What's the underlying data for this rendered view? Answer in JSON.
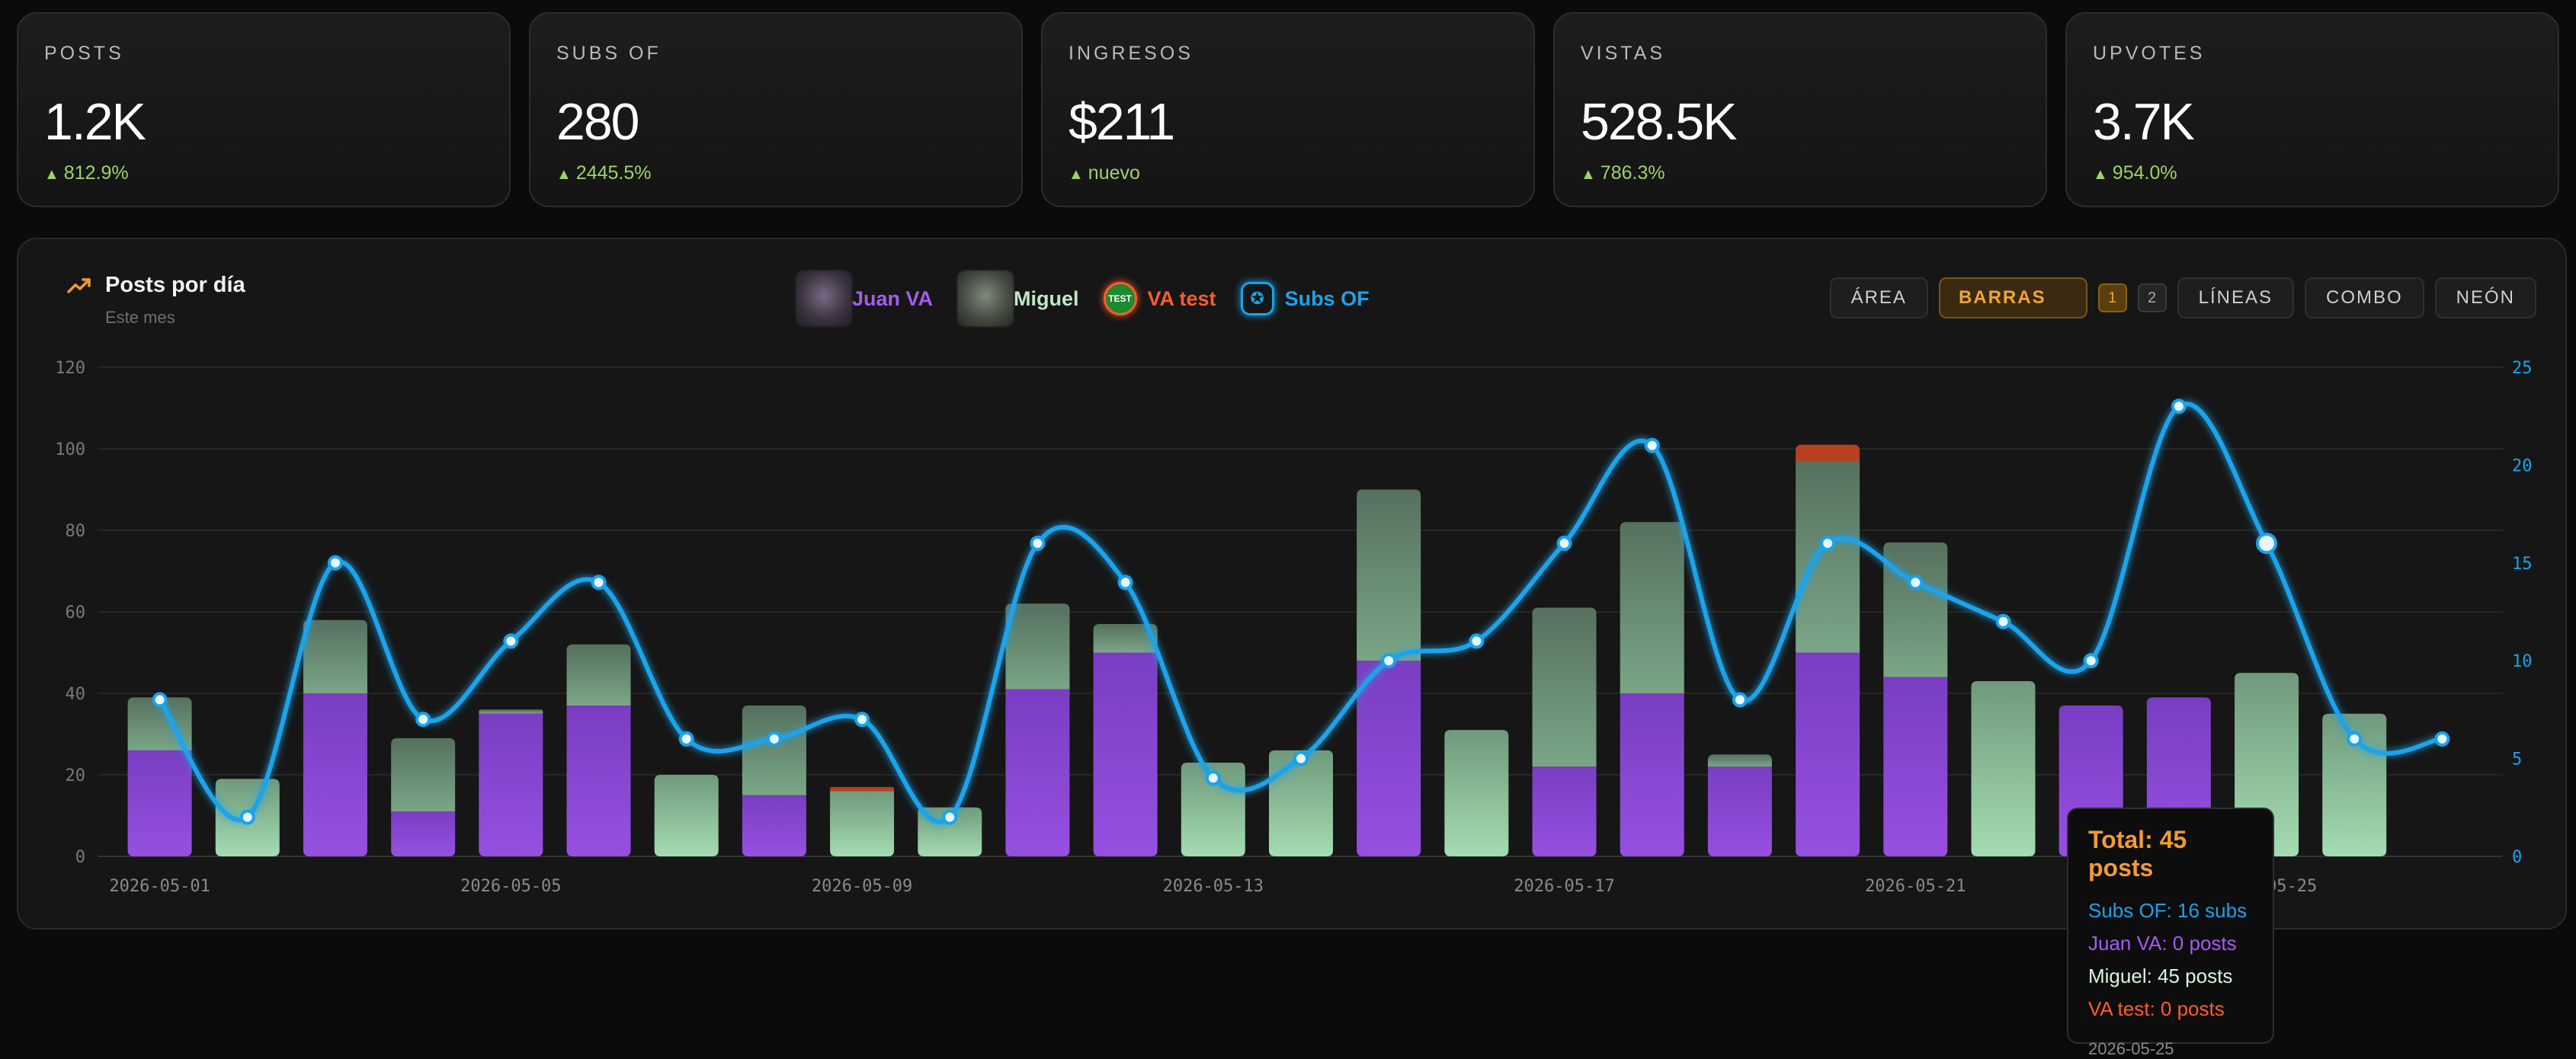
{
  "stats": [
    {
      "label": "POSTS",
      "value": "1.2K",
      "delta": "812.9%"
    },
    {
      "label": "SUBS OF",
      "value": "280",
      "delta": "2445.5%"
    },
    {
      "label": "INGRESOS",
      "value": "$211",
      "delta": "nuevo"
    },
    {
      "label": "VISTAS",
      "value": "528.5K",
      "delta": "786.3%"
    },
    {
      "label": "UPVOTES",
      "value": "3.7K",
      "delta": "954.0%"
    }
  ],
  "panel": {
    "title": "Posts por día",
    "subtitle": "Este mes",
    "icon": "trending-up-icon",
    "legend": [
      {
        "label": "Juan VA",
        "color": "#a35cf0",
        "icon": "avatar-juan"
      },
      {
        "label": "Miguel",
        "color": "#bfe8c6",
        "icon": "avatar-miguel"
      },
      {
        "label": "VA test",
        "color": "#ff5b2e",
        "icon": "test-badge-icon",
        "badge": "TEST"
      },
      {
        "label": "Subs OF",
        "color": "#1aa3ea",
        "icon": "onlyfans-icon"
      }
    ],
    "buttons": {
      "area": "ÁREA",
      "bars": "BARRAS",
      "page1": "1",
      "page2": "2",
      "lines": "LÍNEAS",
      "combo": "COMBO",
      "neon": "NEÓN"
    },
    "tooltip": {
      "title": "Total: 45 posts",
      "subs": "Subs OF: 16 subs",
      "juan": "Juan VA: 0 posts",
      "miguel": "Miguel: 45 posts",
      "vatest": "VA test: 0 posts",
      "date": "2026-05-25"
    }
  },
  "chart_data": {
    "type": "bar",
    "categories": [
      "2026-05-01",
      "2026-05-02",
      "2026-05-03",
      "2026-05-04",
      "2026-05-05",
      "2026-05-06",
      "2026-05-07",
      "2026-05-08",
      "2026-05-09",
      "2026-05-10",
      "2026-05-11",
      "2026-05-12",
      "2026-05-13",
      "2026-05-14",
      "2026-05-15",
      "2026-05-16",
      "2026-05-17",
      "2026-05-18",
      "2026-05-19",
      "2026-05-20",
      "2026-05-21",
      "2026-05-22",
      "2026-05-23",
      "2026-05-24",
      "2026-05-25",
      "2026-05-26",
      "2026-05-27"
    ],
    "x_tick_labels": [
      "2026-05-01",
      "2026-05-05",
      "2026-05-09",
      "2026-05-13",
      "2026-05-17",
      "2026-05-21",
      "2026-05-25"
    ],
    "stacked": true,
    "series": [
      {
        "name": "Juan VA",
        "color": "#8e49d8",
        "values": [
          26,
          0,
          40,
          11,
          35,
          37,
          0,
          15,
          0,
          0,
          41,
          50,
          0,
          0,
          48,
          0,
          22,
          40,
          22,
          50,
          44,
          0,
          37,
          39,
          0,
          0,
          0
        ]
      },
      {
        "name": "Miguel",
        "color": "#9ad3a8",
        "values": [
          13,
          19,
          18,
          18,
          1,
          15,
          20,
          22,
          16,
          12,
          21,
          7,
          23,
          26,
          42,
          31,
          39,
          42,
          3,
          47,
          33,
          43,
          0,
          0,
          45,
          35,
          0
        ]
      },
      {
        "name": "VA test",
        "color": "#e2572b",
        "values": [
          0,
          0,
          0,
          0,
          0,
          0,
          0,
          0,
          1,
          0,
          0,
          0,
          0,
          0,
          0,
          0,
          0,
          0,
          0,
          4,
          0,
          0,
          0,
          0,
          0,
          0,
          0
        ]
      }
    ],
    "line_series": {
      "name": "Subs OF",
      "color": "#1aa3ea",
      "axis": "right",
      "values": [
        8,
        2,
        15,
        7,
        11,
        14,
        6,
        6,
        7,
        2,
        16,
        14,
        4,
        5,
        10,
        11,
        16,
        21,
        8,
        16,
        14,
        12,
        10,
        23,
        16,
        6,
        6
      ]
    },
    "ylim": [
      0,
      120
    ],
    "yticks": [
      0,
      20,
      40,
      60,
      80,
      100,
      120
    ],
    "y2lim": [
      0,
      25
    ],
    "y2ticks": [
      0,
      5,
      10,
      15,
      20,
      25
    ],
    "highlight_index": 24,
    "grid": true,
    "legend": "top-center"
  }
}
